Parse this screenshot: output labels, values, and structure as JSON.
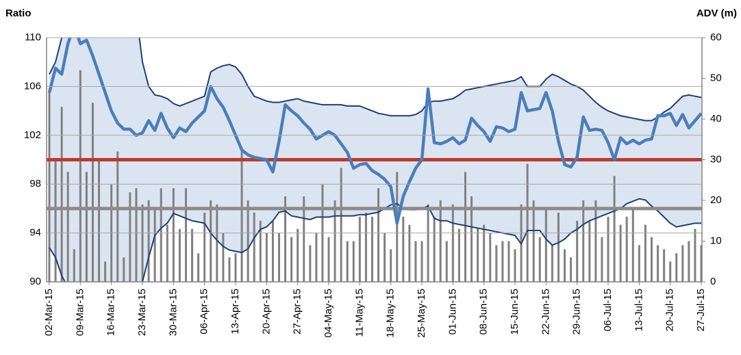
{
  "chart_data": {
    "type": "combo",
    "y_label": "Ratio",
    "y2_label": "ADV (m)",
    "categories": [
      "02-Mar-15",
      null,
      null,
      null,
      null,
      "09-Mar-15",
      null,
      null,
      null,
      null,
      "16-Mar-15",
      null,
      null,
      null,
      null,
      "23-Mar-15",
      null,
      null,
      null,
      null,
      "30-Mar-15",
      null,
      null,
      null,
      null,
      "06-Apr-15",
      null,
      null,
      null,
      null,
      "13-Apr-15",
      null,
      null,
      null,
      null,
      "20-Apr-15",
      null,
      null,
      null,
      null,
      "27-Apr-15",
      null,
      null,
      null,
      null,
      "04-May-15",
      null,
      null,
      null,
      null,
      "11-May-15",
      null,
      null,
      null,
      null,
      "18-May-15",
      null,
      null,
      null,
      null,
      "25-May-15",
      null,
      null,
      null,
      null,
      "01-Jun-15",
      null,
      null,
      null,
      null,
      "08-Jun-15",
      null,
      null,
      null,
      null,
      "15-Jun-15",
      null,
      null,
      null,
      null,
      "22-Jun-15",
      null,
      null,
      null,
      null,
      "29-Jun-15",
      null,
      null,
      null,
      null,
      "06-Jul-15",
      null,
      null,
      null,
      null,
      "13-Jul-15",
      null,
      null,
      null,
      null,
      "20-Jul-15",
      null,
      null,
      null,
      null,
      "27-Jul-15"
    ],
    "series": [
      {
        "kind": "band",
        "color": "#1f3d7a",
        "fill": "#dbe5f1",
        "upper": [
          107,
          108,
          110,
          112,
          114,
          114,
          114,
          114,
          114,
          114,
          114,
          114,
          114,
          113,
          112,
          108,
          106,
          105.3,
          105.2,
          105,
          104.6,
          104.4,
          104.6,
          104.8,
          105,
          105.2,
          107.2,
          107.5,
          107.7,
          107.8,
          107.6,
          107,
          106,
          105.2,
          105,
          104.8,
          104.7,
          104.7,
          104.8,
          104.9,
          105,
          104.8,
          104.7,
          104.6,
          104.5,
          104.5,
          104.5,
          104.5,
          104.4,
          104.4,
          104.4,
          104.2,
          104,
          103.8,
          103.7,
          103.6,
          103.6,
          103.6,
          103.6,
          103.7,
          104,
          104.7,
          104.8,
          104.8,
          104.9,
          105,
          105.3,
          105.7,
          105.8,
          105.9,
          106,
          106.1,
          106.2,
          106.3,
          106.4,
          106.5,
          106.8,
          106,
          106,
          106,
          106.6,
          107,
          106.8,
          106.5,
          106.2,
          106,
          105.7,
          105.2,
          104.7,
          104.3,
          104,
          103.8,
          103.6,
          103.5,
          103.4,
          103.3,
          103.2,
          103.2,
          103.5,
          103.9,
          104.2,
          104.7,
          105.2,
          105.3,
          105.2,
          105.1
        ],
        "lower": [
          92.8,
          92,
          90.5,
          89.5,
          88,
          87,
          87,
          87,
          87,
          87,
          87,
          87,
          87,
          87,
          88,
          90,
          92,
          93.8,
          94.4,
          94.8,
          95.6,
          95.4,
          95.2,
          95,
          94.9,
          94.8,
          94,
          93.4,
          92.9,
          92.6,
          92.5,
          92.4,
          92.7,
          93.6,
          94.3,
          94.5,
          95,
          95.7,
          95.8,
          95.4,
          95.3,
          95.2,
          95.1,
          95.3,
          95.3,
          95.3,
          95.4,
          95.4,
          95.4,
          95.4,
          95.5,
          95.5,
          95.6,
          95.7,
          96,
          96.3,
          96.4,
          96,
          95.9,
          95.9,
          96,
          96.2,
          95.2,
          95,
          95,
          94.8,
          94.7,
          94.6,
          94.5,
          94.4,
          94.3,
          94.2,
          94.1,
          94,
          93.9,
          93.8,
          93.1,
          94.2,
          94.2,
          94.2,
          93.5,
          93,
          93.2,
          93.5,
          94,
          94.3,
          94.7,
          95,
          95.2,
          95.4,
          95.6,
          95.8,
          96,
          96.4,
          96.6,
          96.8,
          96.7,
          96.2,
          95.8,
          95.3,
          94.8,
          94.5,
          94.6,
          94.7,
          94.8,
          94.8
        ]
      },
      {
        "kind": "bar",
        "axis": "y2",
        "color": "#808080",
        "values": [
          47,
          30,
          43,
          27,
          8,
          52,
          27,
          44,
          30,
          5,
          24,
          32,
          6,
          22,
          23,
          19,
          20,
          18,
          23,
          14,
          23,
          13,
          23,
          13,
          7,
          17,
          20,
          19,
          12,
          6,
          7,
          33,
          20,
          17,
          15,
          12,
          15,
          12,
          21,
          11,
          13,
          21,
          9,
          12,
          24,
          11,
          20,
          28,
          10,
          10,
          16,
          17,
          16,
          23,
          12,
          8,
          27,
          16,
          14,
          10,
          10,
          19,
          16,
          20,
          10,
          19,
          13,
          27,
          21,
          13,
          14,
          12,
          9,
          10,
          10,
          8,
          19,
          29,
          20,
          11,
          18,
          9,
          17,
          8,
          6,
          15,
          20,
          15,
          20,
          11,
          16,
          26,
          14,
          16,
          18,
          9,
          14,
          11,
          9,
          8,
          5,
          7,
          9,
          10,
          13,
          9
        ]
      },
      {
        "kind": "line",
        "color": "#4a7ebb",
        "values": [
          105.5,
          107.5,
          107,
          109.5,
          111,
          109.5,
          109.8,
          108.5,
          107,
          105.5,
          104,
          103,
          102.5,
          102.5,
          102,
          102.2,
          103.2,
          102.4,
          103.8,
          102.6,
          101.8,
          102.6,
          102.3,
          103,
          103.5,
          104,
          106,
          105,
          104.3,
          103.2,
          102,
          100.8,
          100.4,
          100.2,
          100.1,
          100,
          99,
          101.5,
          104.5,
          104,
          103.6,
          103,
          102.5,
          101.7,
          102,
          102.3,
          102,
          101.3,
          100.6,
          99.3,
          99.6,
          99.7,
          99.1,
          98.8,
          98.4,
          97.8,
          94.8,
          97,
          98.2,
          99.3,
          100,
          105.8,
          101.4,
          101.3,
          101.5,
          101.8,
          101.3,
          101.6,
          103.4,
          102.8,
          102.3,
          101.5,
          102.7,
          102.6,
          102.3,
          102.5,
          105.5,
          104,
          104.1,
          104.2,
          105.5,
          104,
          101.5,
          99.6,
          99.4,
          100.2,
          103.5,
          102.4,
          102.5,
          102.4,
          101.4,
          100,
          101.8,
          101.3,
          101.6,
          101.3,
          101.6,
          101.7,
          103.6,
          103.6,
          103.8,
          102.8,
          103.7,
          102.6,
          103.2,
          103.8
        ]
      }
    ],
    "hlines": [
      {
        "value": 100,
        "color": "#c0392b"
      },
      {
        "value": 96,
        "color": "#8c8c8c"
      }
    ],
    "ylim": [
      90,
      110
    ],
    "yticks": [
      90,
      94,
      98,
      102,
      106,
      110
    ],
    "y2lim": [
      0,
      60
    ],
    "y2ticks": [
      0,
      10,
      20,
      30,
      40,
      50,
      60
    ],
    "grid": true
  }
}
